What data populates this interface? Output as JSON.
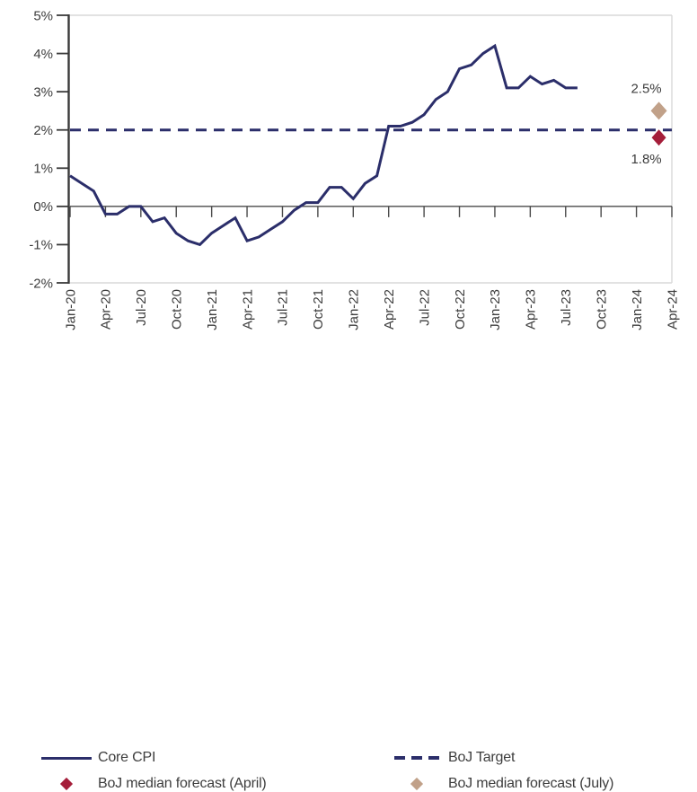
{
  "chart_data": {
    "type": "line",
    "title": "",
    "ylim": [
      -2,
      5
    ],
    "x_total_months": 51,
    "y_tick_values": [
      5,
      4,
      3,
      2,
      1,
      0,
      -1,
      -2
    ],
    "y_tick_labels": [
      "5%",
      "4%",
      "3%",
      "2%",
      "1%",
      "0%",
      "-1%",
      "-2%"
    ],
    "x_tick_months": [
      0,
      3,
      6,
      9,
      12,
      15,
      18,
      21,
      24,
      27,
      30,
      33,
      36,
      39,
      42,
      45,
      48,
      51
    ],
    "x_tick_labels": [
      "Jan-20",
      "Apr-20",
      "Jul-20",
      "Oct-20",
      "Jan-21",
      "Apr-21",
      "Jul-21",
      "Oct-21",
      "Jan-22",
      "Apr-22",
      "Jul-22",
      "Oct-22",
      "Jan-23",
      "Apr-23",
      "Jul-23",
      "Oct-23",
      "Jan-24",
      "Apr-24"
    ],
    "grid_color": "#d9d9d9",
    "axis_color": "#3a3a3a",
    "text_color": "#3d3d3d",
    "series": [
      {
        "name": "Core CPI",
        "style": "solid",
        "color": "#2b2e6a",
        "start_month": 0,
        "values": [
          0.8,
          0.6,
          0.4,
          -0.2,
          -0.2,
          0.0,
          0.0,
          -0.4,
          -0.3,
          -0.7,
          -0.9,
          -1.0,
          -0.7,
          -0.5,
          -0.3,
          -0.9,
          -0.8,
          -0.6,
          -0.4,
          -0.1,
          0.1,
          0.1,
          0.5,
          0.5,
          0.2,
          0.6,
          0.8,
          2.1,
          2.1,
          2.2,
          2.4,
          2.8,
          3.0,
          3.6,
          3.7,
          4.0,
          4.2,
          3.1,
          3.1,
          3.4,
          3.2,
          3.3,
          3.1,
          3.1
        ]
      },
      {
        "name": "BoJ Target",
        "style": "dashed",
        "color": "#2b2e6a",
        "constant_value": 2.0
      }
    ],
    "markers": [
      {
        "name": "BoJ median forecast (July)",
        "color": "#c1a189",
        "month": 49.9,
        "value": 2.5,
        "label": "2.5%",
        "label_side": "above",
        "half_width": 9,
        "half_height": 10
      },
      {
        "name": "BoJ median forecast (April)",
        "color": "#a51e3a",
        "month": 49.9,
        "value": 1.8,
        "label": "1.8%",
        "label_side": "below",
        "half_width": 8,
        "half_height": 9
      }
    ],
    "legend_position": "bottom"
  },
  "legend": {
    "core_cpi": "Core CPI",
    "boj_target": "BoJ Target",
    "forecast_april": "BoJ median forecast (April)",
    "forecast_july": "BoJ median forecast (July)"
  },
  "colors": {
    "navy": "#2b2e6a",
    "forecast_april_red": "#a51e3a",
    "forecast_july_tan": "#c1a189"
  }
}
